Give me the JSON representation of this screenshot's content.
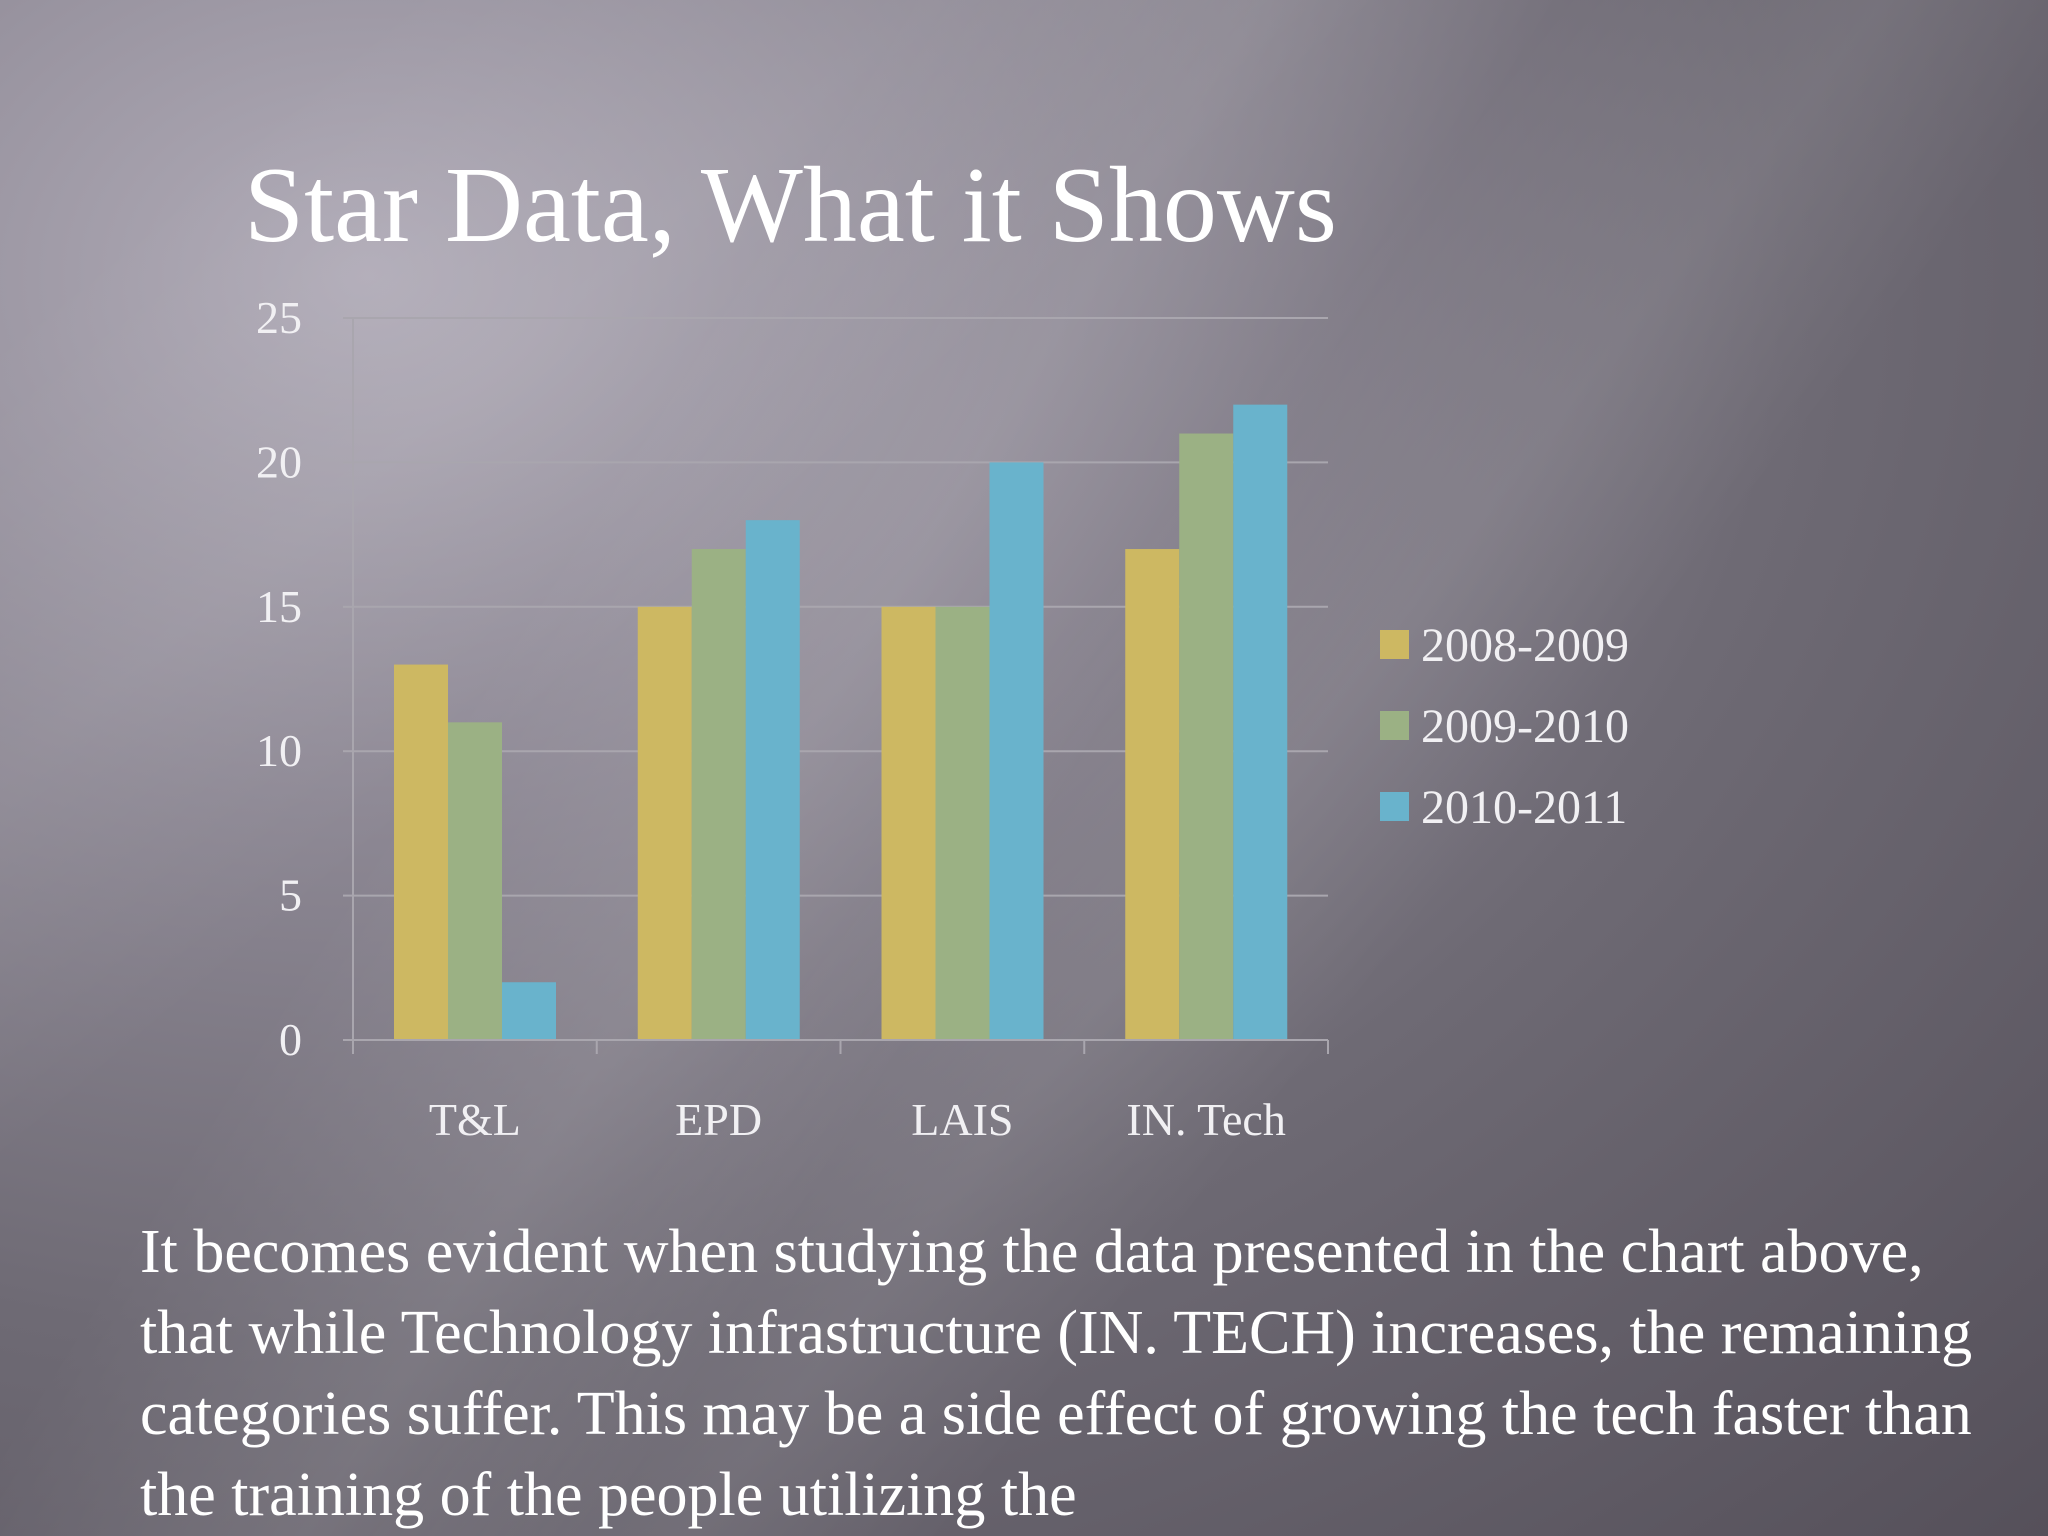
{
  "slide": {
    "title": "Star Data, What it Shows",
    "body": "It becomes evident when studying the data presented in the chart above, that while Technology infrastructure (IN. TECH) increases, the remaining categories suffer. This may be a side effect of growing the tech faster than the training of the people utilizing the"
  },
  "chart_data": {
    "type": "bar",
    "categories": [
      "T&L",
      "EPD",
      "LAIS",
      "IN. Tech"
    ],
    "series": [
      {
        "name": "2008-2009",
        "values": [
          13,
          15,
          15,
          17
        ],
        "color": "#cdb862"
      },
      {
        "name": "2009-2010",
        "values": [
          11,
          17,
          15,
          21
        ],
        "color": "#9bb184"
      },
      {
        "name": "2010-2011",
        "values": [
          2,
          18,
          20,
          22
        ],
        "color": "#69b3cc"
      }
    ],
    "ylim": [
      0,
      25
    ],
    "yticks": [
      0,
      5,
      10,
      15,
      20,
      25
    ],
    "grid": true,
    "legend": "right"
  }
}
